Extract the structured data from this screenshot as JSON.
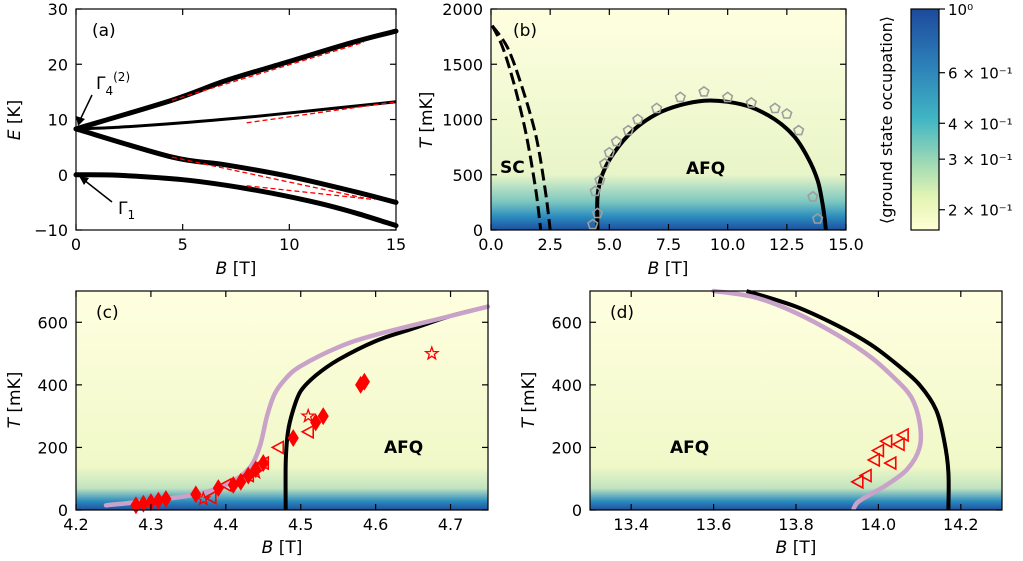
{
  "panels": {
    "a": {
      "label": "(a)",
      "xlabel": "B",
      "xunit": " [T]",
      "ylabel": "E",
      "yunit": " [K]",
      "xticks": [
        "0",
        "5",
        "10",
        "15"
      ],
      "yticks": [
        "30",
        "20",
        "10",
        "0",
        "−10"
      ],
      "annotations": {
        "gamma4": "Γ4(2)",
        "gamma1": "Γ1"
      }
    },
    "b": {
      "label": "(b)",
      "xlabel": "B",
      "xunit": " [T]",
      "ylabel": "T",
      "yunit": " [mK]",
      "xticks": [
        "0.0",
        "2.5",
        "5.0",
        "7.5",
        "10.0",
        "12.5",
        "15.0"
      ],
      "yticks": [
        "2000",
        "1500",
        "1000",
        "500",
        "0"
      ],
      "annotations": {
        "sc": "SC",
        "afq": "AFQ"
      }
    },
    "c": {
      "label": "(c)",
      "xlabel": "B",
      "xunit": " [T]",
      "ylabel": "T",
      "yunit": " [mK]",
      "xticks": [
        "4.2",
        "4.3",
        "4.4",
        "4.5",
        "4.6",
        "4.7"
      ],
      "yticks": [
        "600",
        "400",
        "200",
        "0"
      ],
      "annotations": {
        "afq": "AFQ"
      }
    },
    "d": {
      "label": "(d)",
      "xlabel": "B",
      "xunit": " [T]",
      "ylabel": "T",
      "yunit": " [mK]",
      "xticks": [
        "13.4",
        "13.6",
        "13.8",
        "14.0",
        "14.2"
      ],
      "yticks": [
        "600",
        "400",
        "200",
        "0"
      ],
      "annotations": {
        "afq": "AFQ"
      }
    }
  },
  "colorbar": {
    "label": "⟨ground state occupation⟩",
    "ticks": [
      "10⁰",
      "6 × 10⁻¹",
      "4 × 10⁻¹",
      "3 × 10⁻¹",
      "2 × 10⁻¹"
    ],
    "scale": "log",
    "range": [
      0.17,
      1.0
    ]
  },
  "colors": {
    "red": "#ff0000",
    "lavender": "#c8a2c8",
    "marker_gray": "#9e9e9e",
    "line": "#000000"
  },
  "chart_data": [
    {
      "type": "line",
      "panel": "a",
      "xlim": [
        0,
        15
      ],
      "ylim": [
        -10,
        30
      ],
      "series": [
        {
          "style": "black-thick",
          "x": [
            0,
            4.5,
            7,
            10,
            13,
            15
          ],
          "y": [
            8.3,
            13.5,
            17,
            20.5,
            24,
            26
          ]
        },
        {
          "style": "black-thin",
          "x": [
            0,
            2,
            5,
            8,
            11,
            13,
            15
          ],
          "y": [
            8.3,
            8.6,
            9.4,
            10.4,
            11.6,
            12.4,
            13.2
          ]
        },
        {
          "style": "black-thick",
          "x": [
            0,
            4.5,
            7,
            10,
            13,
            15
          ],
          "y": [
            8.3,
            3.2,
            1.8,
            -0.3,
            -3,
            -5
          ]
        },
        {
          "style": "black-thick",
          "x": [
            0,
            2,
            5,
            8,
            11,
            13,
            15
          ],
          "y": [
            0,
            -0.1,
            -0.9,
            -2.5,
            -4.8,
            -6.8,
            -9.2
          ]
        },
        {
          "style": "red-dashed",
          "x": [
            4.5,
            13.5
          ],
          "y": [
            13.5,
            24
          ]
        },
        {
          "style": "red-dashed",
          "x": [
            8,
            15
          ],
          "y": [
            9.4,
            13.2
          ]
        },
        {
          "style": "red-dashed",
          "x": [
            4.5,
            13.5
          ],
          "y": [
            3.2,
            -4.2
          ]
        },
        {
          "style": "red-dashed",
          "x": [
            8,
            14
          ],
          "y": [
            -2,
            -4.5
          ]
        }
      ]
    },
    {
      "type": "line",
      "panel": "b",
      "xlim": [
        0,
        15
      ],
      "ylim": [
        0,
        2000
      ],
      "series": [
        {
          "style": "black-dashed",
          "x": [
            0.05,
            0.5,
            1.0,
            1.5,
            1.9,
            2.1
          ],
          "y": [
            1850,
            1650,
            1300,
            850,
            350,
            0
          ]
        },
        {
          "style": "black-dashed",
          "x": [
            0.05,
            0.7,
            1.3,
            1.9,
            2.3,
            2.5
          ],
          "y": [
            1850,
            1650,
            1300,
            850,
            350,
            0
          ]
        },
        {
          "style": "black-solid",
          "x": [
            4.5,
            4.5,
            4.7,
            5.2,
            6.0,
            7.0,
            8.0,
            9.0,
            10.0,
            11.0,
            12.0,
            12.8,
            13.4,
            13.8,
            14.0,
            14.1,
            14.15
          ],
          "y": [
            0,
            300,
            500,
            700,
            900,
            1050,
            1130,
            1170,
            1160,
            1110,
            1000,
            850,
            650,
            450,
            250,
            100,
            0
          ]
        },
        {
          "style": "gray-markers",
          "x": [
            4.3,
            4.4,
            4.5,
            4.6,
            4.8,
            5.0,
            5.3,
            5.8,
            6.2,
            7.0,
            8.0,
            9.0,
            10.0,
            11.0,
            12.0,
            12.5,
            13.0,
            13.6,
            13.8
          ],
          "y": [
            50,
            350,
            150,
            450,
            600,
            700,
            800,
            900,
            1000,
            1100,
            1200,
            1250,
            1200,
            1150,
            1100,
            1050,
            900,
            300,
            100
          ]
        }
      ]
    },
    {
      "type": "line",
      "panel": "c",
      "xlim": [
        4.2,
        4.75
      ],
      "ylim": [
        0,
        700
      ],
      "series": [
        {
          "style": "black-solid",
          "x": [
            4.48,
            4.48,
            4.483,
            4.49,
            4.5,
            4.52,
            4.55,
            4.6,
            4.65,
            4.7,
            4.75
          ],
          "y": [
            0,
            150,
            250,
            320,
            380,
            430,
            480,
            540,
            580,
            620,
            650
          ]
        },
        {
          "style": "lavender",
          "x": [
            4.24,
            4.3,
            4.36,
            4.4,
            4.43,
            4.445,
            4.455,
            4.465,
            4.48,
            4.5,
            4.55,
            4.6,
            4.7,
            4.75
          ],
          "y": [
            15,
            30,
            50,
            80,
            130,
            200,
            300,
            370,
            420,
            460,
            520,
            560,
            620,
            650
          ]
        },
        {
          "style": "red-diamonds",
          "x": [
            4.28,
            4.29,
            4.3,
            4.31,
            4.32,
            4.36,
            4.39,
            4.41,
            4.42,
            4.43,
            4.44,
            4.45,
            4.49,
            4.52,
            4.53,
            4.58,
            4.585
          ],
          "y": [
            15,
            20,
            25,
            30,
            35,
            50,
            70,
            80,
            90,
            110,
            130,
            150,
            230,
            280,
            300,
            400,
            410
          ]
        },
        {
          "style": "red-triangles",
          "x": [
            4.38,
            4.4,
            4.43,
            4.45,
            4.47,
            4.51
          ],
          "y": [
            40,
            80,
            110,
            150,
            200,
            250
          ]
        },
        {
          "style": "red-stars",
          "x": [
            4.37,
            4.44,
            4.51,
            4.675
          ],
          "y": [
            35,
            120,
            300,
            500
          ]
        }
      ]
    },
    {
      "type": "line",
      "panel": "d",
      "xlim": [
        13.3,
        14.3
      ],
      "ylim": [
        0,
        700
      ],
      "series": [
        {
          "style": "black-solid",
          "x": [
            13.68,
            13.8,
            13.9,
            13.98,
            14.05,
            14.1,
            14.14,
            14.16,
            14.17,
            14.17
          ],
          "y": [
            700,
            650,
            590,
            530,
            460,
            400,
            320,
            220,
            120,
            0
          ]
        },
        {
          "style": "lavender",
          "x": [
            13.6,
            13.7,
            13.8,
            13.9,
            13.98,
            14.04,
            14.08,
            14.1,
            14.1,
            14.07,
            14.02,
            13.98,
            13.95,
            13.94
          ],
          "y": [
            700,
            680,
            630,
            560,
            490,
            420,
            360,
            280,
            200,
            130,
            80,
            50,
            25,
            5
          ]
        },
        {
          "style": "red-triangles",
          "x": [
            13.95,
            13.97,
            13.99,
            14.0,
            14.02,
            14.03,
            14.05,
            14.06
          ],
          "y": [
            90,
            110,
            160,
            190,
            220,
            150,
            210,
            240
          ]
        }
      ]
    }
  ]
}
